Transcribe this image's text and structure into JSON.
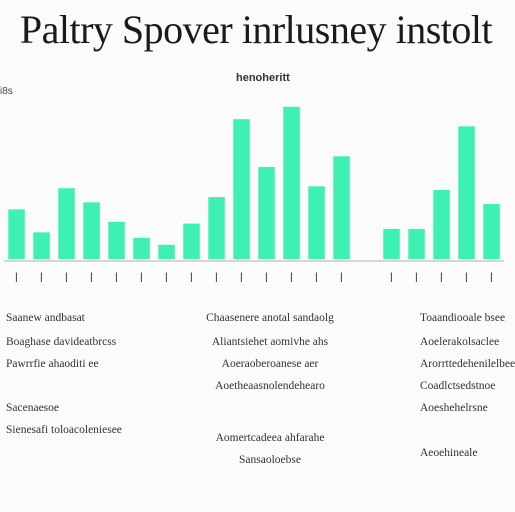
{
  "chart_data": {
    "type": "bar",
    "title": "Paltry Spover inrlusney instolt",
    "subtitle": "henoheritt",
    "ylabel": "i8s",
    "ylim": [
      0,
      100
    ],
    "categories": [
      "l",
      "l",
      "l",
      "l",
      "l",
      "l",
      "l",
      "l",
      "l",
      "l",
      "l",
      "l",
      "l",
      "l",
      "",
      "l",
      "l",
      "l",
      "l",
      "l"
    ],
    "values": [
      28,
      15,
      40,
      32,
      21,
      12,
      8,
      20,
      35,
      79,
      52,
      86,
      41,
      58,
      0,
      17,
      17,
      39,
      75,
      31
    ],
    "bar_color": "#3ef0b2",
    "axis_color": "#c9c9c9",
    "grid": false
  },
  "notes": {
    "left": [
      "Saanew andbasat",
      "Boaghase davideatbrcss",
      "Pawrrfie ahaoditi ee",
      "Sacenaesoe",
      "Sienesafi toloacoleniesee"
    ],
    "center": [
      "Chaasenere anotal sandaolg",
      "Aliantsiehet aomivhe ahs",
      "Aoeraoberoanese aer",
      "Aoetheaasnolendehearo",
      "Aomertcadeea ahfarahe",
      "Sansaoloebse"
    ],
    "right": [
      "Toaandiooale bsee",
      "Aoelerakolsaclee",
      "Arorrttedehenilelbee",
      "Coadlctsedstnoe",
      "Aoeshehelrsne",
      "Aeoehineale"
    ]
  }
}
